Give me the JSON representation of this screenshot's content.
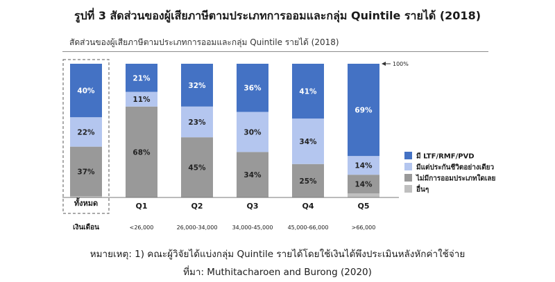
{
  "page": {
    "figure_title": "รูปที่ 3 สัดส่วนของผู้เสียภาษีตามประเภทการออมและกลุ่ม Quintile รายได้ (2018)",
    "note_line1": "หมายเหตุ: 1) คณะผู้วิจัยได้แบ่งกลุ่ม Quintile รายได้โดยใช้เงินได้พึงประเมินหลังหักค่าใช้จ่าย",
    "note_line2": "ที่มา: Muthitacharoen and Burong (2020)"
  },
  "chart_data": {
    "type": "bar",
    "stacked": true,
    "title": "สัดส่วนของผู้เสียภาษีตามประเภทการออมและกลุ่ม Quintile รายได้ (2018)",
    "categories": [
      "ทั้งหมด",
      "Q1",
      "Q2",
      "Q3",
      "Q4",
      "Q5"
    ],
    "income_row_label": "เงินเดือน",
    "income_ranges": [
      "",
      "<26,000",
      "26,000-34,000",
      "34,000-45,000",
      "45,000-66,000",
      ">66,000"
    ],
    "ylim": [
      0,
      100
    ],
    "reference_label": "100%",
    "legend_position": "right",
    "grid": false,
    "series": [
      {
        "name": "อื่นๆ",
        "color": "#bfbfbf",
        "values": [
          1,
          0,
          0,
          0,
          0,
          3
        ],
        "labels": [
          "",
          "",
          "",
          "",
          "",
          ""
        ]
      },
      {
        "name": "ไม่มีการออมประเภทใดเลย",
        "color": "#999999",
        "values": [
          37,
          68,
          45,
          34,
          25,
          14
        ],
        "labels": [
          "37%",
          "68%",
          "45%",
          "34%",
          "25%",
          "14%"
        ]
      },
      {
        "name": "มีแต่ประกันชีวิตอย่างเดียว",
        "color": "#b4c6ef",
        "values": [
          22,
          11,
          23,
          30,
          34,
          14
        ],
        "labels": [
          "22%",
          "11%",
          "23%",
          "30%",
          "34%",
          "14%"
        ]
      },
      {
        "name": "มี LTF/RMF/PVD",
        "color": "#4472c4",
        "values": [
          40,
          21,
          32,
          36,
          41,
          69
        ],
        "labels": [
          "40%",
          "21%",
          "32%",
          "36%",
          "41%",
          "69%"
        ]
      }
    ],
    "legend_order": [
      "มี LTF/RMF/PVD",
      "มีแต่ประกันชีวิตอย่างเดียว",
      "ไม่มีการออมประเภทใดเลย",
      "อื่นๆ"
    ]
  }
}
